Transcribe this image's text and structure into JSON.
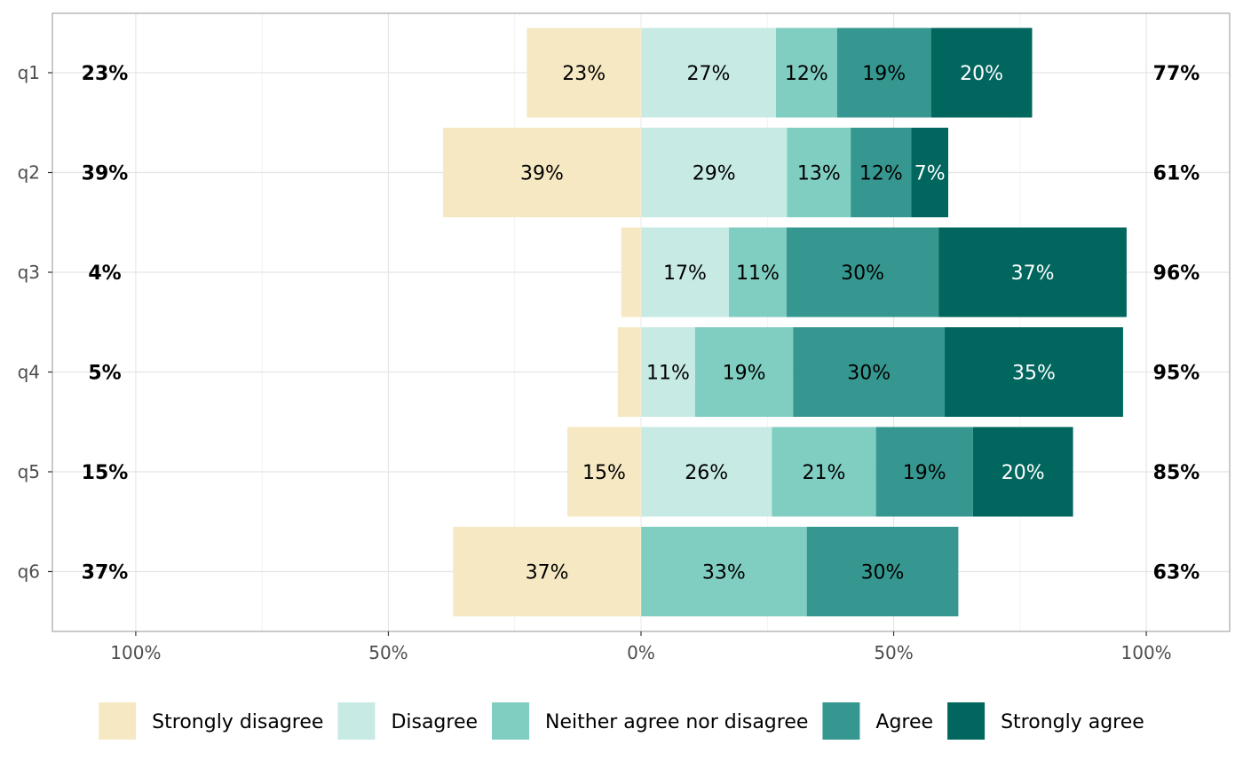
{
  "chart_data": {
    "type": "bar",
    "orientation": "horizontal",
    "layout": "diverging-stacked",
    "categories": [
      "q1",
      "q2",
      "q3",
      "q4",
      "q5",
      "q6"
    ],
    "x_ticks": [
      {
        "value": -100,
        "label": "100%"
      },
      {
        "value": -50,
        "label": "50%"
      },
      {
        "value": 0,
        "label": "0%"
      },
      {
        "value": 50,
        "label": "50%"
      },
      {
        "value": 100,
        "label": "100%"
      }
    ],
    "xlim": [
      -116.5,
      116.5
    ],
    "grid": true,
    "legend_position": "bottom",
    "series": [
      {
        "name": "Strongly disagree",
        "side": "negative",
        "color": "#f6e8c3",
        "label_color": "#000000",
        "values": [
          22.6,
          39.2,
          3.9,
          4.6,
          14.6,
          37.2
        ],
        "labels": [
          "23%",
          "39%",
          "",
          "",
          "15%",
          "37%"
        ]
      },
      {
        "name": "Disagree",
        "side": "positive",
        "color": "#c7eae5",
        "label_color": "#000000",
        "values": [
          26.7,
          28.9,
          17.4,
          10.7,
          25.9,
          0
        ],
        "labels": [
          "27%",
          "29%",
          "17%",
          "11%",
          "26%",
          ""
        ]
      },
      {
        "name": "Neither agree nor disagree",
        "side": "positive",
        "color": "#80cdc1",
        "label_color": "#000000",
        "values": [
          12.1,
          12.6,
          11.4,
          19.4,
          20.6,
          32.8
        ],
        "labels": [
          "12%",
          "13%",
          "11%",
          "19%",
          "21%",
          "33%"
        ]
      },
      {
        "name": "Agree",
        "side": "positive",
        "color": "#35978f",
        "label_color": "#000000",
        "values": [
          18.6,
          12.0,
          30.1,
          30.0,
          19.2,
          30.0
        ],
        "labels": [
          "19%",
          "12%",
          "30%",
          "30%",
          "19%",
          "30%"
        ]
      },
      {
        "name": "Strongly agree",
        "side": "positive",
        "color": "#01665e",
        "label_color": "#ffffff",
        "values": [
          20.0,
          7.3,
          37.2,
          35.3,
          19.8,
          0
        ],
        "labels": [
          "20%",
          "7%",
          "37%",
          "35%",
          "20%",
          ""
        ]
      }
    ],
    "left_totals": [
      "23%",
      "39%",
      "4%",
      "5%",
      "15%",
      "37%"
    ],
    "right_totals": [
      "77%",
      "61%",
      "96%",
      "95%",
      "85%",
      "63%"
    ]
  }
}
